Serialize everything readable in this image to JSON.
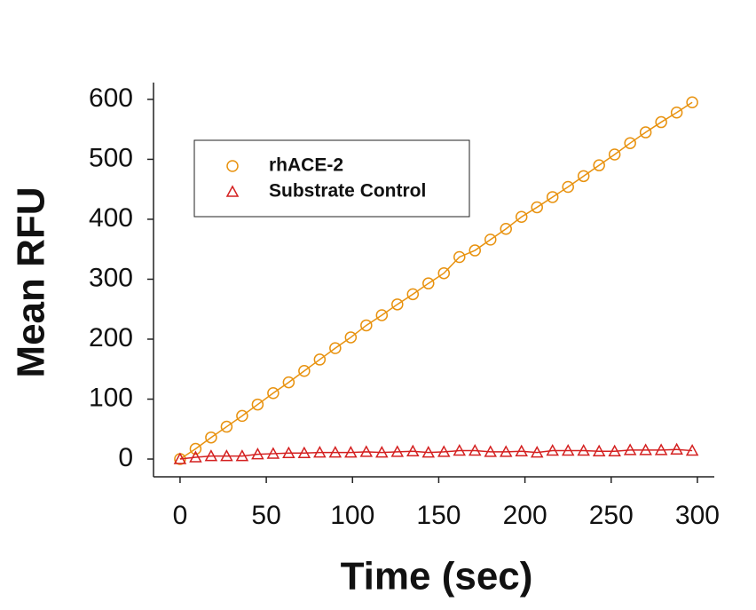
{
  "chart_data": {
    "type": "scatter",
    "x_label": "Time (sec)",
    "y_label": "Mean RFU",
    "x": [
      0,
      9,
      18,
      27,
      36,
      45,
      54,
      63,
      72,
      81,
      90,
      99,
      108,
      117,
      126,
      135,
      144,
      153,
      162,
      171,
      180,
      189,
      198,
      207,
      216,
      225,
      234,
      243,
      252,
      261,
      270,
      279,
      288,
      297
    ],
    "series": [
      {
        "name": "rhACE-2",
        "color": "#e8920f",
        "marker": "circle",
        "values": [
          0,
          17,
          36,
          54,
          72,
          91,
          110,
          128,
          147,
          166,
          185,
          203,
          223,
          240,
          258,
          275,
          293,
          310,
          337,
          348,
          366,
          384,
          404,
          420,
          437,
          454,
          472,
          490,
          508,
          527,
          545,
          562,
          578,
          595
        ]
      },
      {
        "name": "Substrate Control",
        "color": "#d42020",
        "marker": "triangle",
        "values": [
          0,
          3,
          5,
          5,
          5,
          8,
          9,
          10,
          10,
          11,
          11,
          11,
          12,
          11,
          12,
          13,
          11,
          12,
          14,
          14,
          12,
          12,
          13,
          11,
          14,
          14,
          14,
          13,
          13,
          15,
          15,
          15,
          16,
          14
        ]
      }
    ],
    "xlim": [
      -15.4,
      309.8
    ],
    "ylim": [
      -29.6,
      628
    ],
    "xticks": [
      0,
      50,
      100,
      150,
      200,
      250,
      300
    ],
    "yticks": [
      0,
      100,
      200,
      300,
      400,
      500,
      600
    ],
    "legend": "upper left"
  }
}
